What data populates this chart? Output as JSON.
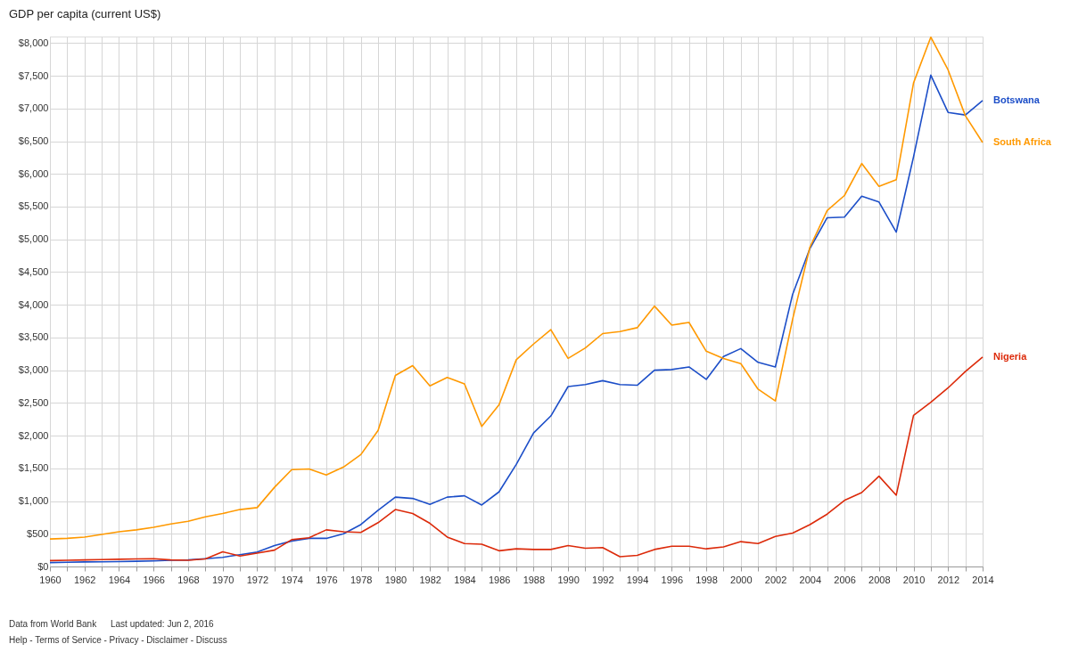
{
  "chart_data": {
    "type": "line",
    "title": "GDP per capita (current US$)",
    "x": [
      1960,
      1961,
      1962,
      1963,
      1964,
      1965,
      1966,
      1967,
      1968,
      1969,
      1970,
      1971,
      1972,
      1973,
      1974,
      1975,
      1976,
      1977,
      1978,
      1979,
      1980,
      1981,
      1982,
      1983,
      1984,
      1985,
      1986,
      1987,
      1988,
      1989,
      1990,
      1991,
      1992,
      1993,
      1994,
      1995,
      1996,
      1997,
      1998,
      1999,
      2000,
      2001,
      2002,
      2003,
      2004,
      2005,
      2006,
      2007,
      2008,
      2009,
      2010,
      2011,
      2012,
      2013,
      2014
    ],
    "series": [
      {
        "name": "Botswana",
        "color": "#1c4ec8",
        "values": [
          60,
          65,
          70,
          72,
          75,
          80,
          85,
          95,
          100,
          120,
          140,
          180,
          220,
          320,
          390,
          430,
          430,
          500,
          640,
          860,
          1060,
          1040,
          950,
          1060,
          1080,
          940,
          1140,
          1560,
          2040,
          2300,
          2750,
          2780,
          2840,
          2780,
          2770,
          3000,
          3010,
          3050,
          2860,
          3210,
          3330,
          3120,
          3050,
          4160,
          4860,
          5330,
          5340,
          5660,
          5570,
          5110,
          6260,
          7510,
          6940,
          6900,
          7120
        ]
      },
      {
        "name": "South Africa",
        "color": "#ff9900",
        "values": [
          420,
          430,
          450,
          490,
          530,
          560,
          600,
          650,
          690,
          760,
          810,
          870,
          900,
          1210,
          1480,
          1490,
          1400,
          1520,
          1710,
          2080,
          2920,
          3070,
          2760,
          2890,
          2790,
          2140,
          2470,
          3160,
          3400,
          3620,
          3180,
          3340,
          3560,
          3590,
          3650,
          3980,
          3690,
          3730,
          3290,
          3180,
          3100,
          2710,
          2530,
          3780,
          4880,
          5440,
          5670,
          6160,
          5810,
          5910,
          7390,
          8090,
          7590,
          6890,
          6480
        ]
      },
      {
        "name": "Nigeria",
        "color": "#dc2a0a",
        "values": [
          90,
          95,
          100,
          105,
          110,
          115,
          120,
          100,
          95,
          115,
          225,
          160,
          205,
          250,
          410,
          440,
          560,
          530,
          520,
          670,
          870,
          810,
          660,
          450,
          350,
          340,
          240,
          270,
          260,
          260,
          320,
          280,
          290,
          150,
          170,
          260,
          310,
          310,
          270,
          300,
          380,
          350,
          460,
          510,
          640,
          800,
          1010,
          1130,
          1380,
          1090,
          2310,
          2510,
          2730,
          2980,
          3200
        ]
      }
    ],
    "xlim": [
      1960,
      2014
    ],
    "xticks": [
      1960,
      {
        "value": 1961,
        "label": null
      },
      1962,
      {
        "value": 1963,
        "label": null
      },
      1964,
      {
        "value": 1965,
        "label": null
      },
      1966,
      {
        "value": 1967,
        "label": null
      },
      1968,
      {
        "value": 1969,
        "label": null
      },
      1970,
      {
        "value": 1971,
        "label": null
      },
      1972,
      {
        "value": 1973,
        "label": null
      },
      1974,
      {
        "value": 1975,
        "label": null
      },
      1976,
      {
        "value": 1977,
        "label": null
      },
      1978,
      {
        "value": 1979,
        "label": null
      },
      1980,
      {
        "value": 1981,
        "label": null
      },
      1982,
      {
        "value": 1983,
        "label": null
      },
      1984,
      {
        "value": 1985,
        "label": null
      },
      1986,
      {
        "value": 1987,
        "label": null
      },
      1988,
      {
        "value": 1989,
        "label": null
      },
      1990,
      {
        "value": 1991,
        "label": null
      },
      1992,
      {
        "value": 1993,
        "label": null
      },
      1994,
      {
        "value": 1995,
        "label": null
      },
      1996,
      {
        "value": 1997,
        "label": null
      },
      1998,
      {
        "value": 1999,
        "label": null
      },
      2000,
      {
        "value": 2001,
        "label": null
      },
      2002,
      {
        "value": 2003,
        "label": null
      },
      2004,
      {
        "value": 2005,
        "label": null
      },
      2006,
      {
        "value": 2007,
        "label": null
      },
      2008,
      {
        "value": 2009,
        "label": null
      },
      2010,
      {
        "value": 2011,
        "label": null
      },
      2012,
      {
        "value": 2013,
        "label": null
      },
      2014
    ],
    "ylim": [
      0,
      8100
    ],
    "yticks": [
      {
        "value": 0,
        "label": "$0"
      },
      {
        "value": 500,
        "label": "$500"
      },
      {
        "value": 1000,
        "label": "$1,000"
      },
      {
        "value": 1500,
        "label": "$1,500"
      },
      {
        "value": 2000,
        "label": "$2,000"
      },
      {
        "value": 2500,
        "label": "$2,500"
      },
      {
        "value": 3000,
        "label": "$3,000"
      },
      {
        "value": 3500,
        "label": "$3,500"
      },
      {
        "value": 4000,
        "label": "$4,000"
      },
      {
        "value": 4500,
        "label": "$4,500"
      },
      {
        "value": 5000,
        "label": "$5,000"
      },
      {
        "value": 5500,
        "label": "$5,500"
      },
      {
        "value": 6000,
        "label": "$6,000"
      },
      {
        "value": 6500,
        "label": "$6,500"
      },
      {
        "value": 7000,
        "label": "$7,000"
      },
      {
        "value": 7500,
        "label": "$7,500"
      },
      {
        "value": 8000,
        "label": "$8,000"
      }
    ],
    "grid": true,
    "marker": "none",
    "line_style": "solid",
    "annotations": [
      "Data from World Bank",
      "Last updated: Jun 2, 2016",
      "Help - Terms of Service - Privacy - Disclaimer - Discuss"
    ]
  }
}
